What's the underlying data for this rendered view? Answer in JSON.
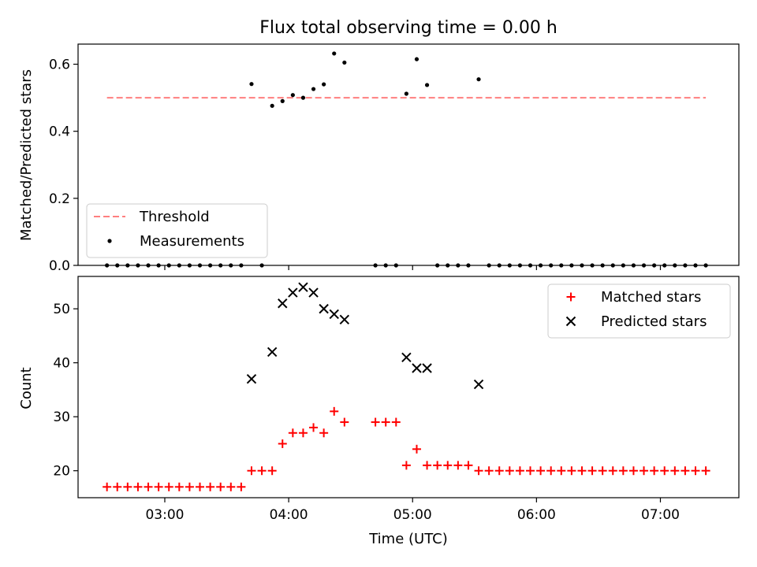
{
  "chart_data": [
    {
      "type": "scatter",
      "title": "Flux total observing time = 0.00 h",
      "xlabel": "",
      "ylabel": "Matched/Predicted stars",
      "xlim": [
        "02:18",
        "07:38"
      ],
      "ylim": [
        0.0,
        0.66
      ],
      "yticks": [
        0.0,
        0.2,
        0.4,
        0.6
      ],
      "ytick_labels": [
        "0.0",
        "0.2",
        "0.4",
        "0.6"
      ],
      "xtick_labels": [
        "03:00",
        "04:00",
        "05:00",
        "06:00",
        "07:00"
      ],
      "x_tick_times": [
        "03:00",
        "04:00",
        "05:00",
        "06:00",
        "07:00"
      ],
      "x_tick_labels_shown": false,
      "grid": false,
      "legend_location": "lower-left",
      "threshold": {
        "name": "Threshold",
        "value": 0.5,
        "x_from": "02:32",
        "x_to": "07:22",
        "color": "#ff7f7f",
        "style": "dashed"
      },
      "series": [
        {
          "name": "Measurements",
          "marker": "dot",
          "color": "#000000",
          "x": [
            "02:32",
            "02:37",
            "02:42",
            "02:47",
            "02:52",
            "02:57",
            "03:02",
            "03:07",
            "03:12",
            "03:17",
            "03:22",
            "03:27",
            "03:32",
            "03:37",
            "03:42",
            "03:47",
            "03:52",
            "03:57",
            "04:02",
            "04:07",
            "04:12",
            "04:17",
            "04:22",
            "04:27",
            "04:42",
            "04:47",
            "04:52",
            "04:57",
            "05:02",
            "05:07",
            "05:12",
            "05:17",
            "05:22",
            "05:27",
            "05:32",
            "05:37",
            "05:42",
            "05:47",
            "05:52",
            "05:57",
            "06:02",
            "06:07",
            "06:12",
            "06:17",
            "06:22",
            "06:27",
            "06:32",
            "06:37",
            "06:42",
            "06:47",
            "06:52",
            "06:57",
            "07:02",
            "07:07",
            "07:12",
            "07:17",
            "07:22"
          ],
          "y": [
            0,
            0,
            0,
            0,
            0,
            0,
            0,
            0,
            0,
            0,
            0,
            0,
            0,
            0,
            0.541,
            0,
            0.476,
            0.49,
            0.508,
            0.5,
            0.526,
            0.54,
            0.632,
            0.605,
            0,
            0,
            0,
            0.512,
            0.615,
            0.538,
            0,
            0,
            0,
            0,
            0.555,
            0,
            0,
            0,
            0,
            0,
            0,
            0,
            0,
            0,
            0,
            0,
            0,
            0,
            0,
            0,
            0,
            0,
            0,
            0,
            0,
            0,
            0
          ]
        }
      ]
    },
    {
      "type": "scatter",
      "title": "",
      "xlabel": "Time (UTC)",
      "ylabel": "Count",
      "xlim": [
        "02:18",
        "07:38"
      ],
      "ylim": [
        15,
        56
      ],
      "yticks": [
        20,
        30,
        40,
        50
      ],
      "ytick_labels": [
        "20",
        "30",
        "40",
        "50"
      ],
      "xtick_labels": [
        "03:00",
        "04:00",
        "05:00",
        "06:00",
        "07:00"
      ],
      "x_tick_times": [
        "03:00",
        "04:00",
        "05:00",
        "06:00",
        "07:00"
      ],
      "grid": false,
      "legend_location": "upper-right",
      "series": [
        {
          "name": "Matched stars",
          "marker": "plus",
          "color": "#ff0000",
          "x": [
            "02:32",
            "02:37",
            "02:42",
            "02:47",
            "02:52",
            "02:57",
            "03:02",
            "03:07",
            "03:12",
            "03:17",
            "03:22",
            "03:27",
            "03:32",
            "03:37",
            "03:42",
            "03:47",
            "03:52",
            "03:57",
            "04:02",
            "04:07",
            "04:12",
            "04:17",
            "04:22",
            "04:27",
            "04:42",
            "04:47",
            "04:52",
            "04:57",
            "05:02",
            "05:07",
            "05:12",
            "05:17",
            "05:22",
            "05:27",
            "05:32",
            "05:37",
            "05:42",
            "05:47",
            "05:52",
            "05:57",
            "06:02",
            "06:07",
            "06:12",
            "06:17",
            "06:22",
            "06:27",
            "06:32",
            "06:37",
            "06:42",
            "06:47",
            "06:52",
            "06:57",
            "07:02",
            "07:07",
            "07:12",
            "07:17",
            "07:22"
          ],
          "y": [
            17,
            17,
            17,
            17,
            17,
            17,
            17,
            17,
            17,
            17,
            17,
            17,
            17,
            17,
            20,
            20,
            20,
            25,
            27,
            27,
            28,
            27,
            31,
            29,
            29,
            29,
            29,
            21,
            24,
            21,
            21,
            21,
            21,
            21,
            20,
            20,
            20,
            20,
            20,
            20,
            20,
            20,
            20,
            20,
            20,
            20,
            20,
            20,
            20,
            20,
            20,
            20,
            20,
            20,
            20,
            20,
            20
          ]
        },
        {
          "name": "Predicted stars",
          "marker": "x",
          "color": "#000000",
          "x": [
            "03:42",
            "03:52",
            "03:57",
            "04:02",
            "04:07",
            "04:12",
            "04:17",
            "04:22",
            "04:27",
            "04:57",
            "05:02",
            "05:07",
            "05:32"
          ],
          "y": [
            37,
            42,
            51,
            53,
            54,
            53,
            50,
            49,
            48,
            41,
            39,
            39,
            36
          ]
        }
      ]
    }
  ]
}
